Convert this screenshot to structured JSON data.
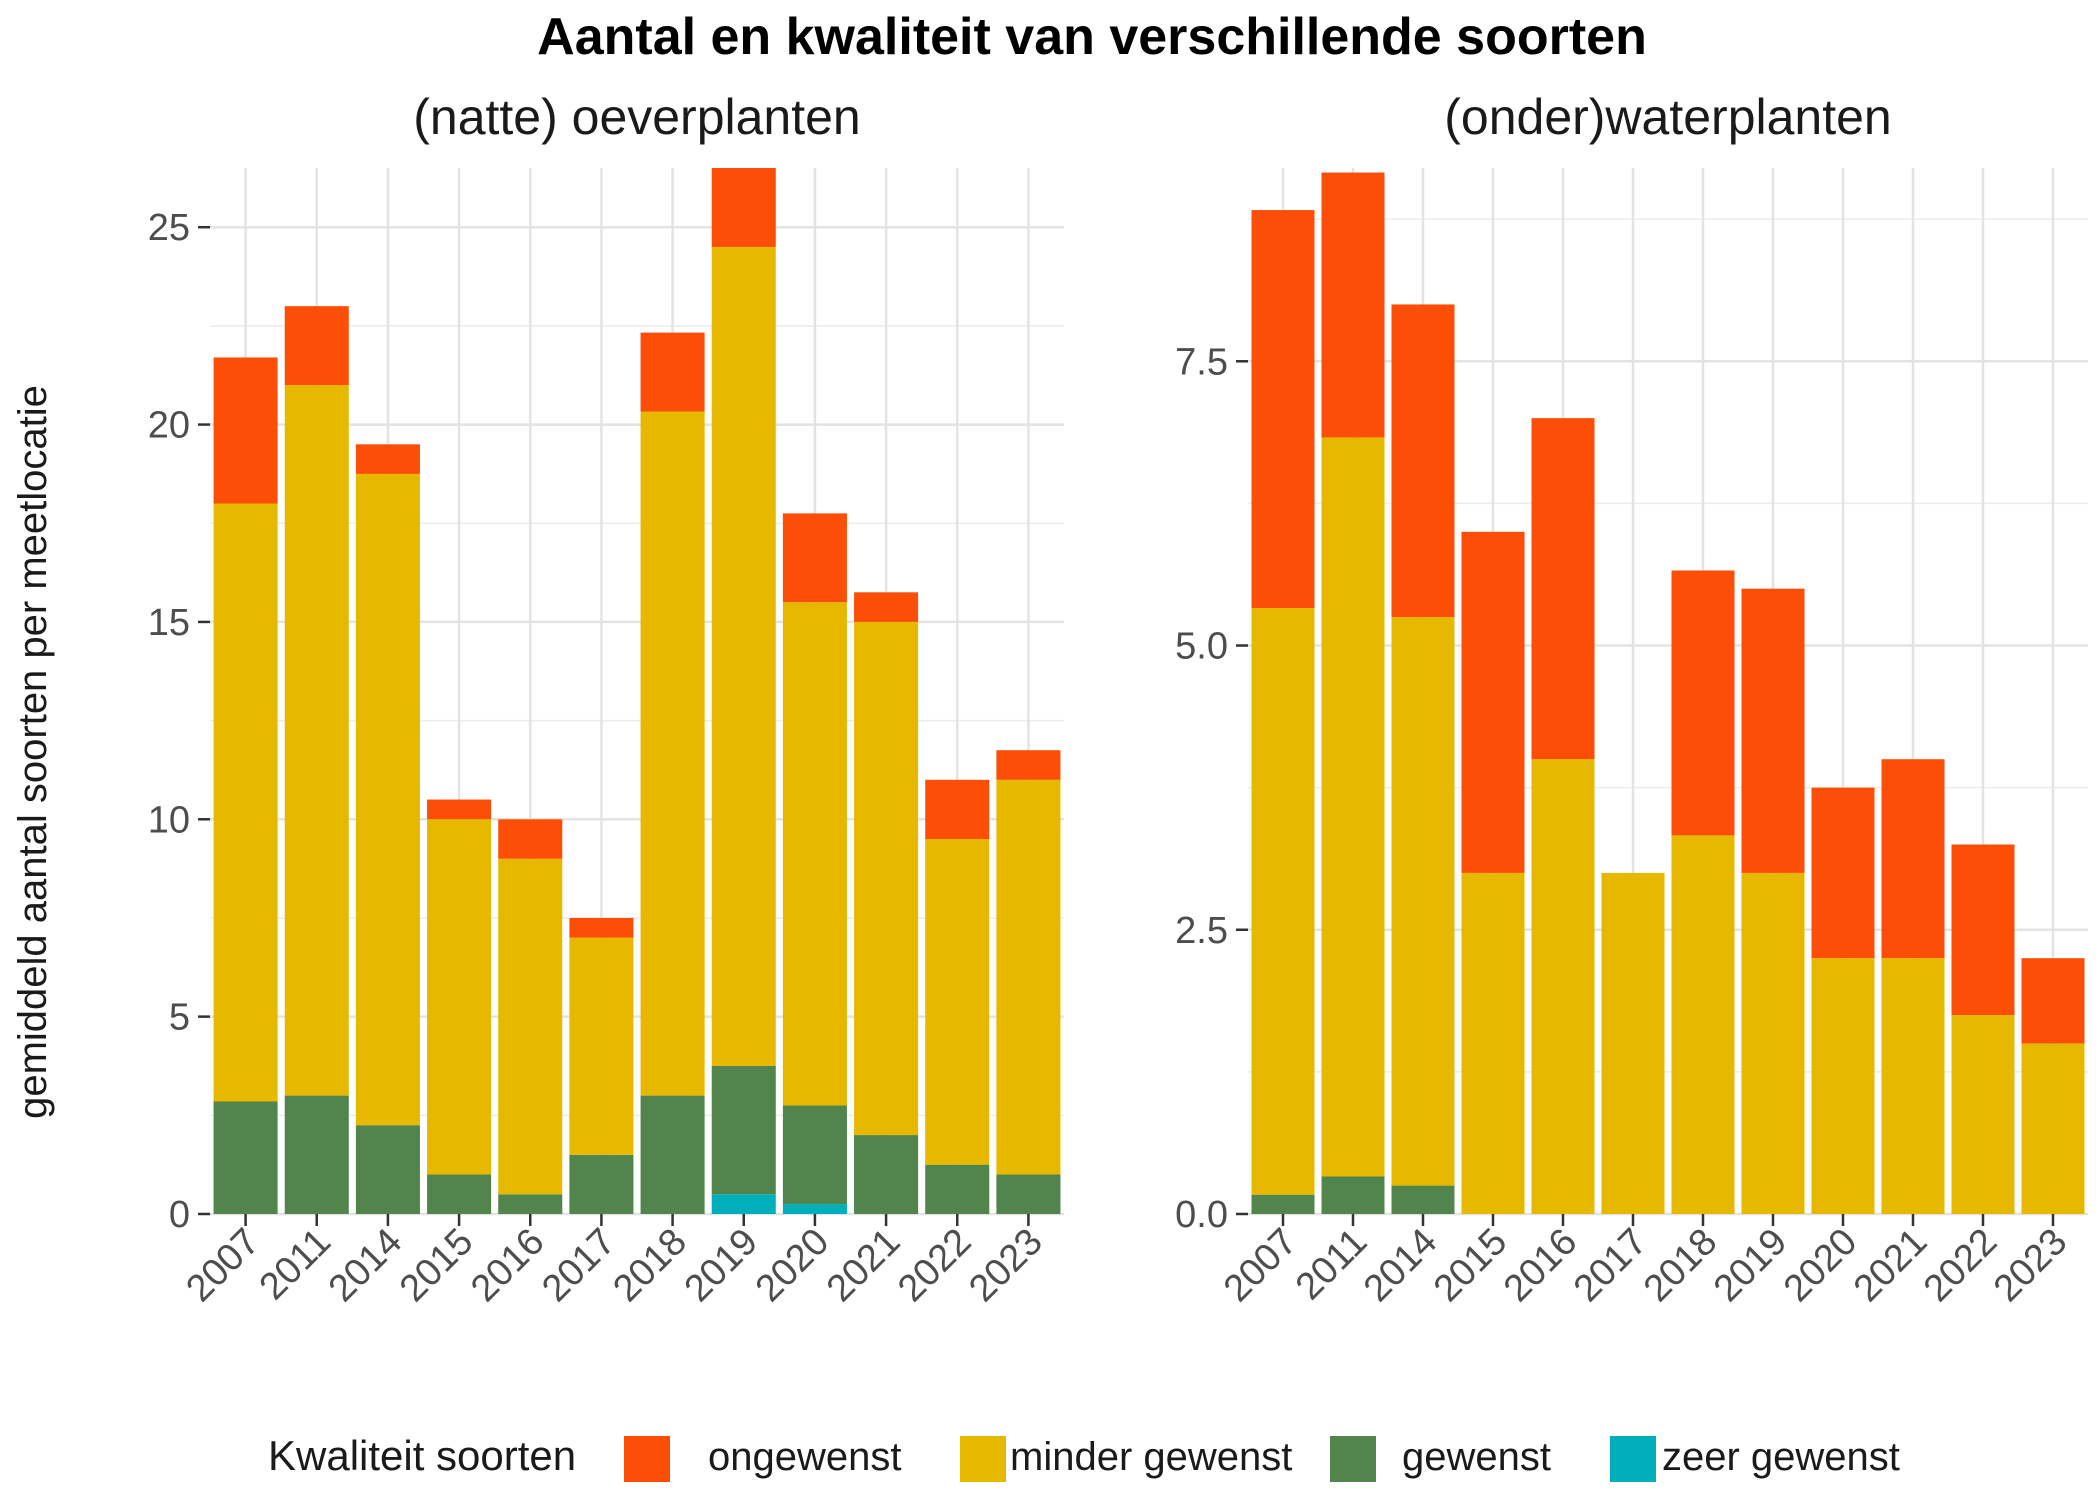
{
  "title": "Aantal en kwaliteit van verschillende soorten",
  "ylabel": "gemiddeld aantal soorten per meetlocatie",
  "legend": {
    "title": "Kwaliteit soorten",
    "items": [
      {
        "label": "ongewenst",
        "color": "#FC4E07"
      },
      {
        "label": "minder gewenst",
        "color": "#E7B800"
      },
      {
        "label": "gewenst",
        "color": "#52854C"
      },
      {
        "label": "zeer gewenst",
        "color": "#00AFBB"
      }
    ]
  },
  "chart_data": [
    {
      "type": "bar",
      "stacked": true,
      "title": "(natte) oeverplanten",
      "categories": [
        "2007",
        "2011",
        "2014",
        "2015",
        "2016",
        "2017",
        "2018",
        "2019",
        "2020",
        "2021",
        "2022",
        "2023"
      ],
      "ylim": [
        0,
        26.5
      ],
      "yticks": [
        0,
        5,
        10,
        15,
        20,
        25
      ],
      "ytick_labels": [
        "0",
        "5",
        "10",
        "15",
        "20",
        "25"
      ],
      "grid": true,
      "series": [
        {
          "name": "zeer gewenst",
          "values": [
            0,
            0,
            0,
            0,
            0,
            0,
            0,
            0.5,
            0.25,
            0,
            0,
            0
          ]
        },
        {
          "name": "gewenst",
          "values": [
            2.85,
            3.0,
            2.25,
            1.0,
            0.5,
            1.5,
            3.0,
            3.25,
            2.5,
            2.0,
            1.25,
            1.0
          ]
        },
        {
          "name": "minder gewenst",
          "values": [
            15.15,
            18.0,
            16.5,
            9.0,
            8.5,
            5.5,
            17.33,
            20.75,
            12.75,
            13.0,
            8.25,
            10.0
          ]
        },
        {
          "name": "ongewenst",
          "values": [
            3.7,
            2.0,
            0.75,
            0.5,
            1.0,
            0.5,
            2.0,
            2.0,
            2.25,
            0.75,
            1.5,
            0.75
          ]
        }
      ]
    },
    {
      "type": "bar",
      "stacked": true,
      "title": "(onder)waterplanten",
      "categories": [
        "2007",
        "2011",
        "2014",
        "2015",
        "2016",
        "2017",
        "2018",
        "2019",
        "2020",
        "2021",
        "2022",
        "2023"
      ],
      "ylim": [
        0,
        9.2
      ],
      "yticks": [
        0,
        2.5,
        5.0,
        7.5
      ],
      "ytick_labels": [
        "0.0",
        "2.5",
        "5.0",
        "7.5"
      ],
      "grid": true,
      "series": [
        {
          "name": "zeer gewenst",
          "values": [
            0,
            0,
            0,
            0,
            0,
            0,
            0,
            0,
            0,
            0,
            0,
            0
          ]
        },
        {
          "name": "gewenst",
          "values": [
            0.17,
            0.33,
            0.25,
            0,
            0,
            0,
            0,
            0,
            0,
            0,
            0,
            0
          ]
        },
        {
          "name": "minder gewenst",
          "values": [
            5.16,
            6.5,
            5.0,
            3.0,
            4.0,
            3.0,
            3.33,
            3.0,
            2.25,
            2.25,
            1.75,
            1.5
          ]
        },
        {
          "name": "ongewenst",
          "values": [
            3.5,
            2.33,
            2.75,
            3.0,
            3.0,
            0,
            2.33,
            2.5,
            1.5,
            1.75,
            1.5,
            0.75
          ]
        }
      ]
    }
  ]
}
